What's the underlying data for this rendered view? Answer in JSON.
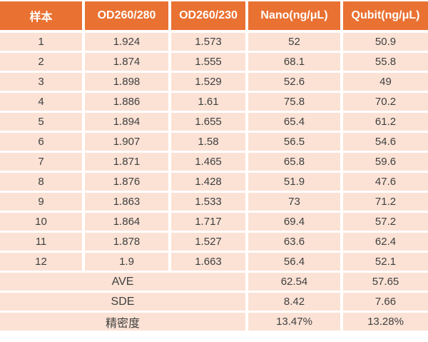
{
  "colors": {
    "header_bg": "#E97132",
    "row_bg": "#FBE2D5",
    "header_text": "#FFFFFF",
    "body_text": "#3F3F3F",
    "grid_gap": "#FFFFFF"
  },
  "table": {
    "headers": [
      "样本",
      "OD260/280",
      "OD260/230",
      "Nano(ng/μL)",
      "Qubit(ng/μL)"
    ],
    "rows": [
      [
        "1",
        "1.924",
        "1.573",
        "52",
        "50.9"
      ],
      [
        "2",
        "1.874",
        "1.555",
        "68.1",
        "55.8"
      ],
      [
        "3",
        "1.898",
        "1.529",
        "52.6",
        "49"
      ],
      [
        "4",
        "1.886",
        "1.61",
        "75.8",
        "70.2"
      ],
      [
        "5",
        "1.894",
        "1.655",
        "65.4",
        "61.2"
      ],
      [
        "6",
        "1.907",
        "1.58",
        "56.5",
        "54.6"
      ],
      [
        "7",
        "1.871",
        "1.465",
        "65.8",
        "59.6"
      ],
      [
        "8",
        "1.876",
        "1.428",
        "51.9",
        "47.6"
      ],
      [
        "9",
        "1.863",
        "1.533",
        "73",
        "71.2"
      ],
      [
        "10",
        "1.864",
        "1.717",
        "69.4",
        "57.2"
      ],
      [
        "11",
        "1.878",
        "1.527",
        "63.6",
        "62.4"
      ],
      [
        "12",
        "1.9",
        "1.663",
        "56.4",
        "52.1"
      ]
    ],
    "summary": [
      {
        "label": "AVE",
        "nano": "62.54",
        "qubit": "57.65"
      },
      {
        "label": "SDE",
        "nano": "8.42",
        "qubit": "7.66"
      },
      {
        "label": "精密度",
        "nano": "13.47%",
        "qubit": "13.28%"
      }
    ]
  },
  "chart_data": {
    "type": "table",
    "title": "",
    "columns": [
      "样本",
      "OD260/280",
      "OD260/230",
      "Nano(ng/μL)",
      "Qubit(ng/μL)"
    ],
    "samples": [
      1,
      2,
      3,
      4,
      5,
      6,
      7,
      8,
      9,
      10,
      11,
      12
    ],
    "od260_280": [
      1.924,
      1.874,
      1.898,
      1.886,
      1.894,
      1.907,
      1.871,
      1.876,
      1.863,
      1.864,
      1.878,
      1.9
    ],
    "od260_230": [
      1.573,
      1.555,
      1.529,
      1.61,
      1.655,
      1.58,
      1.465,
      1.428,
      1.533,
      1.717,
      1.527,
      1.663
    ],
    "nano_ng_ul": [
      52,
      68.1,
      52.6,
      75.8,
      65.4,
      56.5,
      65.8,
      51.9,
      73,
      69.4,
      63.6,
      56.4
    ],
    "qubit_ng_ul": [
      50.9,
      55.8,
      49,
      70.2,
      61.2,
      54.6,
      59.6,
      47.6,
      71.2,
      57.2,
      62.4,
      52.1
    ],
    "summary_rows": {
      "AVE": {
        "nano": 62.54,
        "qubit": 57.65
      },
      "SDE": {
        "nano": 8.42,
        "qubit": 7.66
      },
      "精密度": {
        "nano": "13.47%",
        "qubit": "13.28%"
      }
    }
  }
}
